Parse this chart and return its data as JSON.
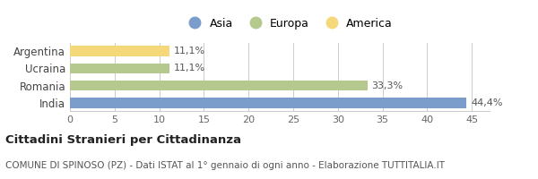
{
  "categories": [
    "Argentina",
    "Ucraina",
    "Romania",
    "India"
  ],
  "values": [
    11.1,
    11.1,
    33.3,
    44.4
  ],
  "labels": [
    "11,1%",
    "11,1%",
    "33,3%",
    "44,4%"
  ],
  "bar_colors": [
    "#f5d87a",
    "#b5c98e",
    "#b5c98e",
    "#7a9dcc"
  ],
  "xlim": [
    0,
    47
  ],
  "xticks": [
    0,
    5,
    10,
    15,
    20,
    25,
    30,
    35,
    40,
    45
  ],
  "legend_items": [
    {
      "label": "Asia",
      "color": "#7a9dcc"
    },
    {
      "label": "Europa",
      "color": "#b5c98e"
    },
    {
      "label": "America",
      "color": "#f5d87a"
    }
  ],
  "title": "Cittadini Stranieri per Cittadinanza",
  "subtitle": "COMUNE DI SPINOSO (PZ) - Dati ISTAT al 1° gennaio di ogni anno - Elaborazione TUTTITALIA.IT",
  "background_color": "#ffffff",
  "grid_color": "#cccccc",
  "label_fontsize": 8,
  "title_fontsize": 9.5,
  "subtitle_fontsize": 7.5,
  "bar_height": 0.6
}
